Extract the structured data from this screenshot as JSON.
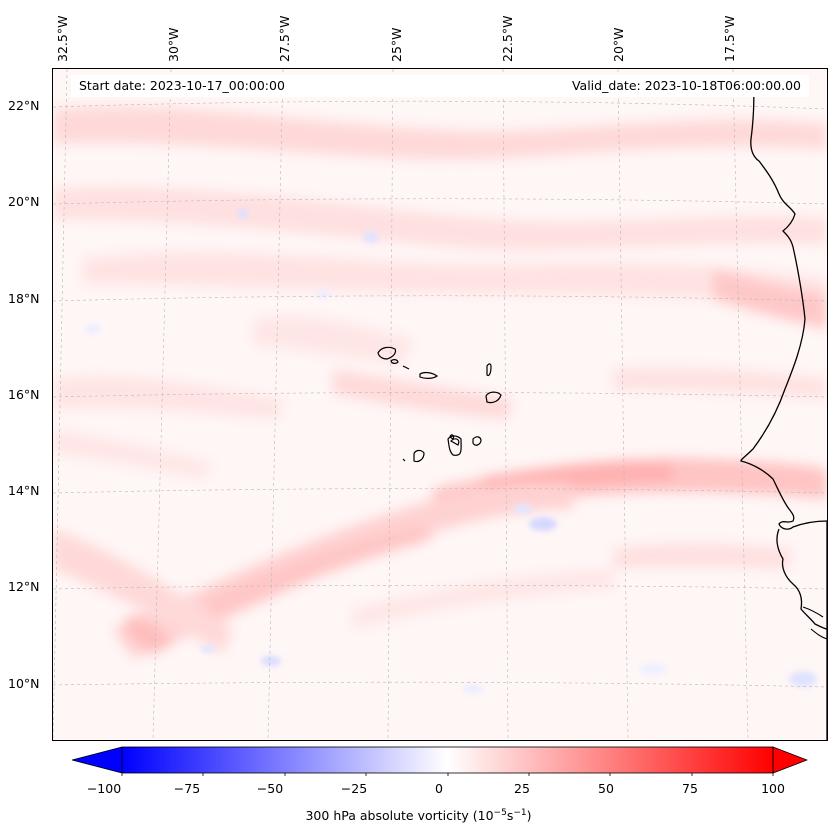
{
  "header": {
    "start_date": "Start date: 2023-10-17_00:00:00",
    "valid_date": "Valid_date: 2023-10-18T06:00:00.00"
  },
  "axes": {
    "longitude_labels": [
      "32.5°W",
      "30°W",
      "27.5°W",
      "25°W",
      "22.5°W",
      "20°W",
      "17.5°W"
    ],
    "latitude_labels": [
      "22°N",
      "20°N",
      "18°N",
      "16°N",
      "14°N",
      "12°N",
      "10°N"
    ]
  },
  "colorbar": {
    "label_main": "300 hPa absolute vorticity (10",
    "label_exp1": "−5",
    "label_mid": "s",
    "label_exp2": "−1",
    "label_end": ")",
    "min": -100,
    "max": 100,
    "ticks": [
      "−100",
      "−75",
      "−50",
      "−25",
      "0",
      "25",
      "50",
      "75",
      "100"
    ],
    "extend": "both",
    "colors": {
      "negative": "#0000ff",
      "zero": "#ffffff",
      "positive": "#ff0000"
    }
  },
  "map": {
    "field": "300 hPa absolute vorticity",
    "lon_range": [
      -33,
      -16.5
    ],
    "lat_range": [
      9,
      23
    ],
    "background_value": 3,
    "features": [
      {
        "name": "African coast",
        "type": "coastline"
      },
      {
        "name": "Cape Verde islands",
        "type": "islands"
      }
    ]
  }
}
